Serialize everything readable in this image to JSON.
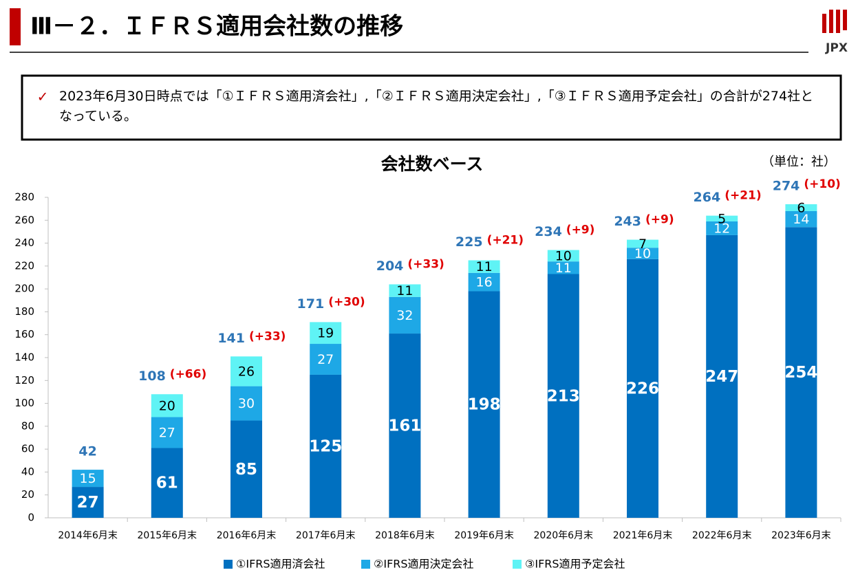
{
  "header": {
    "title": "Ⅲ－２．ＩＦＲＳ適用会社数の推移",
    "logo": "JPX"
  },
  "note": "2023年6月30日時点では「①ＩＦＲＳ適用済会社」,「②ＩＦＲＳ適用決定会社」,「③ＩＦＲＳ適用予定会社」の合計が274社となっている。",
  "chart_data": {
    "type": "stacked_bar",
    "title": "会社数ベース",
    "unit": "（単位：社）",
    "categories": [
      "2014年6月末",
      "2015年6月末",
      "2016年6月末",
      "2017年6月末",
      "2018年6月末",
      "2019年6月末",
      "2020年6月末",
      "2021年6月末",
      "2022年6月末",
      "2023年6月末"
    ],
    "series": [
      {
        "name": "①IFRS適用済会社",
        "color": "#0070c0",
        "values": [
          27,
          61,
          85,
          125,
          161,
          198,
          213,
          226,
          247,
          254
        ]
      },
      {
        "name": "②IFRS適用決定会社",
        "color": "#1ea8e6",
        "values": [
          15,
          27,
          30,
          27,
          32,
          16,
          11,
          10,
          12,
          14
        ]
      },
      {
        "name": "③IFRS適用予定会社",
        "color": "#5ff3f5",
        "values": [
          null,
          20,
          26,
          19,
          11,
          11,
          10,
          7,
          5,
          6
        ]
      }
    ],
    "totals": [
      42,
      108,
      141,
      171,
      204,
      225,
      234,
      243,
      264,
      274
    ],
    "total_changes": [
      null,
      {
        "value": 66,
        "label": "(+66)"
      },
      {
        "value": 33,
        "label": "(+33)"
      },
      {
        "value": 30,
        "label": "(+30)"
      },
      {
        "value": 33,
        "label": "(+33)"
      },
      {
        "value": 21,
        "label": "(+21)"
      },
      {
        "value": 9,
        "label": "(+9)"
      },
      {
        "value": 9,
        "label": "(+9)"
      },
      {
        "value": 21,
        "label": "(+21)"
      },
      {
        "value": 10,
        "label": "(+10)"
      }
    ],
    "ylim": [
      0,
      280
    ],
    "yticks": [
      0,
      20,
      40,
      60,
      80,
      100,
      120,
      140,
      160,
      180,
      200,
      220,
      240,
      260,
      280
    ],
    "legend": "bottom"
  }
}
